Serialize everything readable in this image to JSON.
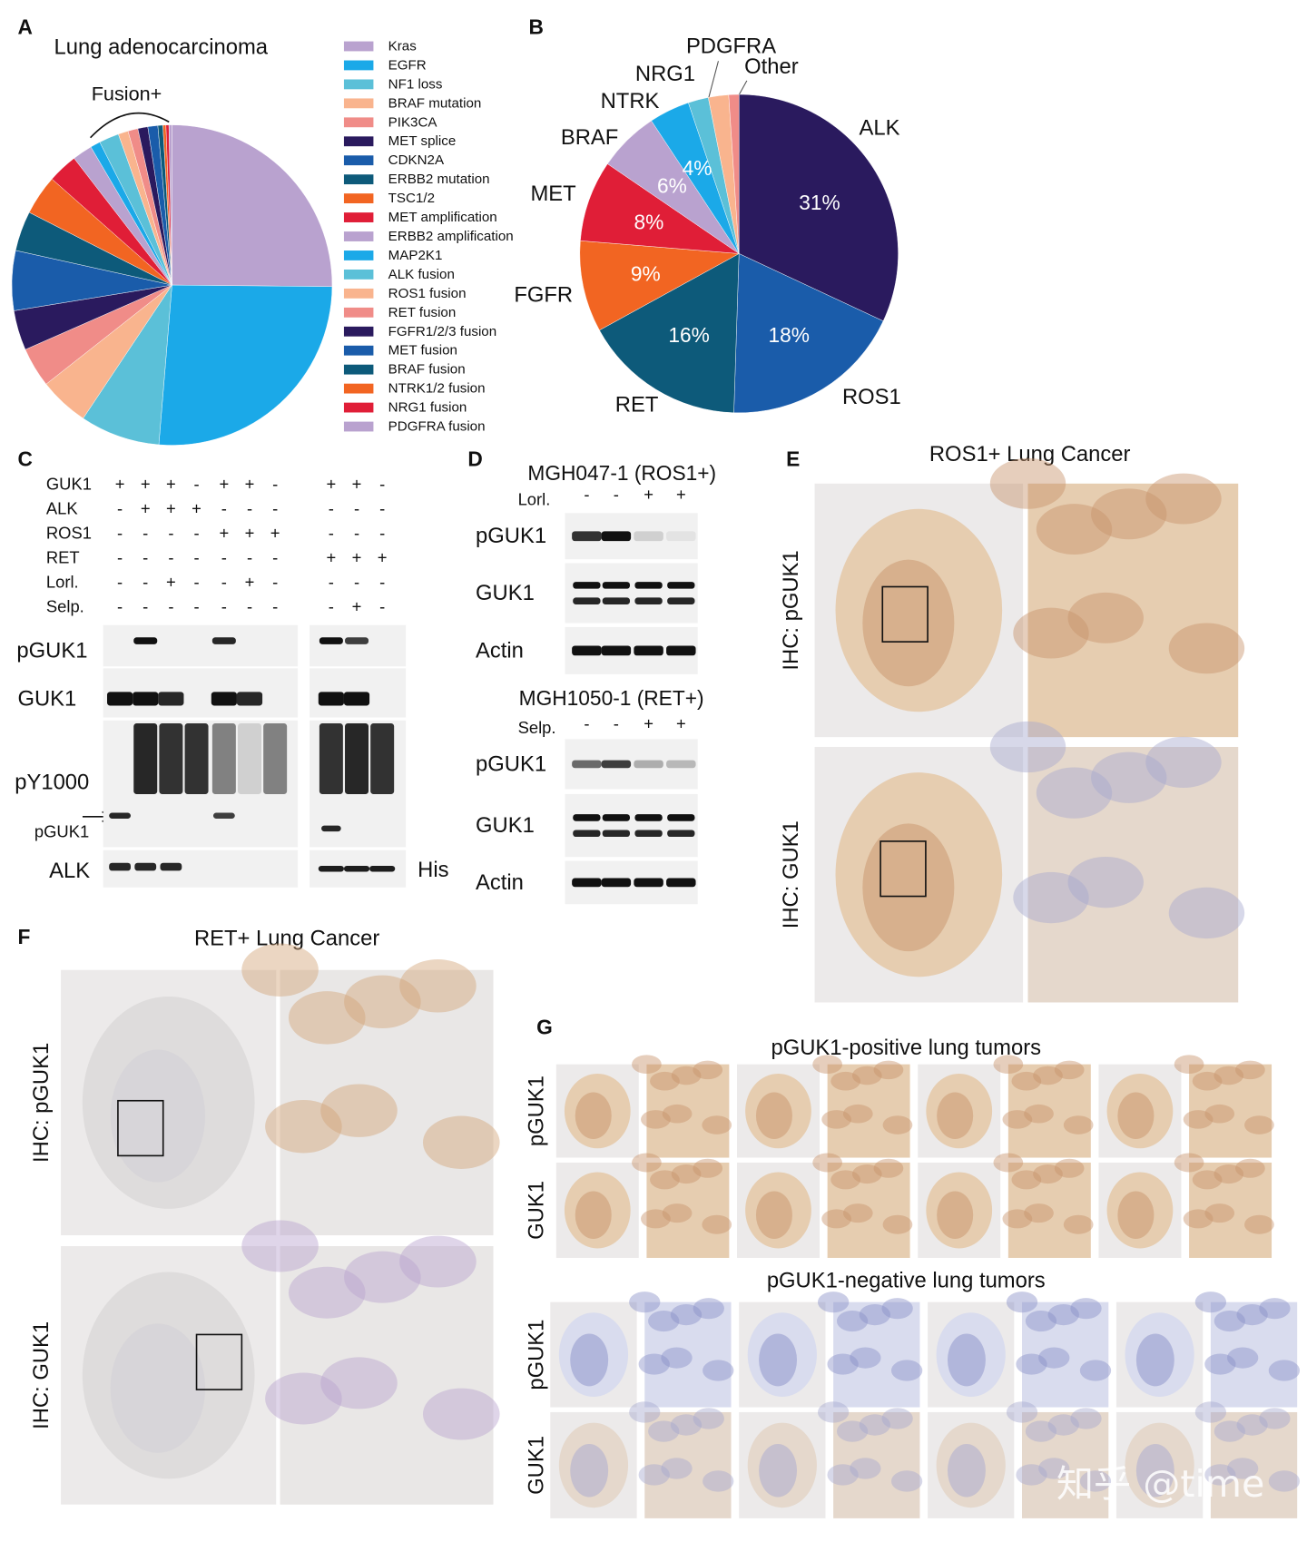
{
  "panel_letters": [
    "A",
    "B",
    "C",
    "D",
    "E",
    "F",
    "G"
  ],
  "chart_data": [
    {
      "type": "pie",
      "title": "Lung adenocarcinoma",
      "annotation": "Fusion+",
      "legend": "right",
      "categories": [
        "Kras",
        "EGFR",
        "NF1 loss",
        "BRAF mutation",
        "PIK3CA",
        "MET splice",
        "CDKN2A",
        "ERBB2 mutation",
        "TSC1/2",
        "MET amplification",
        "ERBB2 amplification",
        "MAP2K1",
        "ALK fusion",
        "ROS1 fusion",
        "RET fusion",
        "FGFR1/2/3 fusion",
        "MET fusion",
        "BRAF fusion",
        "NTRK1/2 fusion",
        "NRG1 fusion",
        "PDGFRA fusion"
      ],
      "values": [
        25,
        26,
        8,
        5,
        4,
        4,
        6,
        4,
        4,
        3,
        2,
        1,
        2,
        1,
        1,
        1,
        1,
        0.5,
        0.3,
        0.3,
        0.3
      ],
      "colors": [
        "#b9a2cf",
        "#1ba9e8",
        "#5bc0d8",
        "#f9b48e",
        "#f08c88",
        "#2a1a5e",
        "#1a5caa",
        "#0d5a7a",
        "#f26522",
        "#e01e37",
        "#b9a2cf",
        "#1ba9e8",
        "#5bc0d8",
        "#f9b48e",
        "#f08c88",
        "#2a1a5e",
        "#1a5caa",
        "#0d5a7a",
        "#f26522",
        "#e01e37",
        "#b9a2cf"
      ]
    },
    {
      "type": "pie",
      "categories": [
        "ALK",
        "ROS1",
        "RET",
        "FGFR",
        "MET",
        "BRAF",
        "NTRK",
        "NRG1",
        "PDGFRA",
        "Other"
      ],
      "values": [
        31,
        18,
        16,
        9,
        8,
        6,
        4,
        2,
        2,
        1
      ],
      "value_labels": [
        "31%",
        "18%",
        "16%",
        "9%",
        "8%",
        "6%",
        "4%",
        null,
        null,
        null
      ],
      "colors": [
        "#2a1a5e",
        "#1a5caa",
        "#0d5a7a",
        "#f26522",
        "#e01e37",
        "#b9a2cf",
        "#1ba9e8",
        "#5bc0d8",
        "#f9b48e",
        "#f08c88"
      ]
    }
  ],
  "blot_C": {
    "conditions": [
      {
        "label": "GUK1",
        "signs": [
          "+",
          "+",
          "+",
          "-",
          "+",
          "+",
          "-",
          "+",
          "+",
          "-"
        ]
      },
      {
        "label": "ALK",
        "signs": [
          "-",
          "+",
          "+",
          "+",
          "-",
          "-",
          "-",
          "-",
          "-",
          "-"
        ]
      },
      {
        "label": "ROS1",
        "signs": [
          "-",
          "-",
          "-",
          "-",
          "+",
          "+",
          "+",
          "-",
          "-",
          "-"
        ]
      },
      {
        "label": "RET",
        "signs": [
          "-",
          "-",
          "-",
          "-",
          "-",
          "-",
          "-",
          "+",
          "+",
          "+"
        ]
      },
      {
        "label": "Lorl.",
        "signs": [
          "-",
          "-",
          "+",
          "-",
          "-",
          "+",
          "-",
          "-",
          "-",
          "-"
        ]
      },
      {
        "label": "Selp.",
        "signs": [
          "-",
          "-",
          "-",
          "-",
          "-",
          "-",
          "-",
          "-",
          "+",
          "-"
        ]
      }
    ],
    "blot_labels": [
      "pGUK1",
      "GUK1",
      "pY1000",
      "pGUK1",
      "ALK",
      "His"
    ]
  },
  "blot_D": {
    "experiments": [
      {
        "title": "MGH047-1 (ROS1+)",
        "treatment": "Lorl.",
        "signs": [
          "-",
          "-",
          "+",
          "+"
        ],
        "blot_labels": [
          "pGUK1",
          "GUK1",
          "Actin"
        ]
      },
      {
        "title": "MGH1050-1 (RET+)",
        "treatment": "Selp.",
        "signs": [
          "-",
          "-",
          "+",
          "+"
        ],
        "blot_labels": [
          "pGUK1",
          "GUK1",
          "Actin"
        ]
      }
    ]
  },
  "ihc_E": {
    "title": "ROS1+ Lung Cancer",
    "row_labels": [
      "IHC: pGUK1",
      "IHC: GUK1"
    ]
  },
  "ihc_F": {
    "title": "RET+ Lung Cancer",
    "row_labels": [
      "IHC: pGUK1",
      "IHC: GUK1"
    ]
  },
  "ihc_G": {
    "groups": [
      {
        "title": "pGUK1-positive lung tumors",
        "row_labels": [
          "pGUK1",
          "GUK1"
        ]
      },
      {
        "title": "pGUK1-negative lung tumors",
        "row_labels": [
          "pGUK1",
          "GUK1"
        ]
      }
    ]
  },
  "watermark": "知乎 @time"
}
